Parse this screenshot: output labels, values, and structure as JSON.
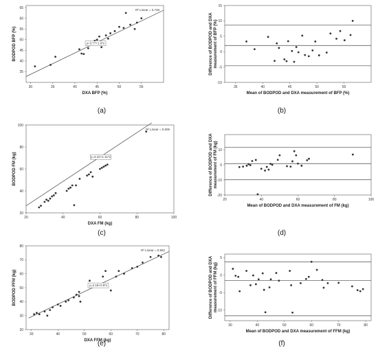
{
  "chart_data": [
    {
      "id": "a",
      "caption": "(a)",
      "type": "scatter",
      "xlabel": "DXA BFP (%)",
      "ylabel": "BODPOD BFP (%)",
      "xlim": [
        29,
        60
      ],
      "ylim": [
        30,
        66
      ],
      "xticks": [
        30,
        35,
        40,
        45,
        50,
        55
      ],
      "yticks": [
        35,
        40,
        45,
        50,
        55,
        60,
        65
      ],
      "r2_label": "R² Linear = 0.748",
      "equation": "y=3.77+1.0*x",
      "fit": {
        "slope": 1.0,
        "intercept": 3.77,
        "x_range": [
          29,
          60
        ]
      },
      "points": [
        [
          31,
          37.5
        ],
        [
          34.5,
          38.2
        ],
        [
          35.6,
          42.0
        ],
        [
          41,
          45.5
        ],
        [
          41.5,
          43.5
        ],
        [
          42,
          43.3
        ],
        [
          43,
          46.0
        ],
        [
          43.5,
          47.5
        ],
        [
          44,
          47.8
        ],
        [
          44.5,
          49.5
        ],
        [
          45,
          50.0
        ],
        [
          45.5,
          51.5
        ],
        [
          46,
          46.5
        ],
        [
          46.5,
          48.0
        ],
        [
          47,
          52.0
        ],
        [
          47.5,
          50.5
        ],
        [
          48,
          53.0
        ],
        [
          49,
          54.0
        ],
        [
          50,
          56.0
        ],
        [
          51,
          55.5
        ],
        [
          51.5,
          62.5
        ],
        [
          52.5,
          57.0
        ],
        [
          53.5,
          55.0
        ],
        [
          54,
          58.0
        ],
        [
          55,
          60.0
        ]
      ]
    },
    {
      "id": "b",
      "caption": "(b)",
      "type": "scatter",
      "xlabel": "Mean of BODPOD and DXA measurement of BFP (%)",
      "ylabel": "Difference of BODPOD and DXA measurement of BFP (%)",
      "xlim": [
        33,
        60
      ],
      "ylim": [
        -10,
        15
      ],
      "xticks": [
        35,
        40,
        45,
        50,
        55
      ],
      "yticks": [
        -10,
        -5,
        0,
        5,
        10,
        15
      ],
      "hlines": [
        8.6,
        2.0,
        -4.6
      ],
      "points": [
        [
          37,
          3.3
        ],
        [
          38.5,
          0.8
        ],
        [
          41,
          4.8
        ],
        [
          42.2,
          -3.0
        ],
        [
          42.6,
          2.7
        ],
        [
          43,
          1.2
        ],
        [
          44,
          -2.5
        ],
        [
          44.4,
          -3.1
        ],
        [
          44.7,
          3.4
        ],
        [
          45.4,
          0.2
        ],
        [
          45.8,
          -3.3
        ],
        [
          46.2,
          1.5
        ],
        [
          46.6,
          -0.2
        ],
        [
          47.3,
          5.2
        ],
        [
          47.8,
          -1.1
        ],
        [
          48.5,
          -1.5
        ],
        [
          49.2,
          0.4
        ],
        [
          49.7,
          3.3
        ],
        [
          50.4,
          -1.2
        ],
        [
          51.8,
          -0.3
        ],
        [
          52.5,
          5.9
        ],
        [
          53.6,
          4.2
        ],
        [
          54.3,
          6.7
        ],
        [
          55.1,
          3.7
        ],
        [
          56.2,
          5.4
        ],
        [
          56.6,
          10.0
        ]
      ]
    },
    {
      "id": "c",
      "caption": "(c)",
      "type": "scatter",
      "xlabel": "DXA FM (kg)",
      "ylabel": "BODPOD FM (kg)",
      "xlim": [
        20,
        100
      ],
      "ylim": [
        20,
        100
      ],
      "xticks": [
        20,
        40,
        60,
        80,
        100
      ],
      "yticks": [
        20,
        40,
        60,
        80,
        100
      ],
      "r2_label": "R² Linear = 0.905",
      "equation": "y=4.22+1.11*x",
      "fit": {
        "slope": 1.11,
        "intercept": 4.22,
        "x_range": [
          20,
          88
        ]
      },
      "points": [
        [
          27,
          25
        ],
        [
          28,
          26.5
        ],
        [
          30,
          30
        ],
        [
          31,
          32
        ],
        [
          32,
          31
        ],
        [
          33,
          33
        ],
        [
          34,
          35
        ],
        [
          35,
          36
        ],
        [
          36,
          38
        ],
        [
          42,
          40
        ],
        [
          43,
          42
        ],
        [
          44,
          43
        ],
        [
          45,
          45
        ],
        [
          46,
          27
        ],
        [
          47,
          45
        ],
        [
          49,
          51
        ],
        [
          53,
          54
        ],
        [
          54,
          55
        ],
        [
          55,
          57
        ],
        [
          56,
          53
        ],
        [
          60,
          60
        ],
        [
          61,
          61
        ],
        [
          62,
          62
        ],
        [
          63,
          63
        ],
        [
          64,
          64
        ],
        [
          85,
          94
        ]
      ]
    },
    {
      "id": "d",
      "caption": "(d)",
      "type": "scatter",
      "xlabel": "Mean of BODPOD and DXA measurement of FM (kg)",
      "ylabel": "Difference of BODPOD and DXA measurement of FM (kg)",
      "xlim": [
        20,
        100
      ],
      "ylim": [
        -20,
        20
      ],
      "xticks": [
        20,
        40,
        60,
        80,
        100
      ],
      "yticks": [
        -20,
        -10,
        0,
        10
      ],
      "hlines": [
        11.5,
        0.8,
        -9.9
      ],
      "points": [
        [
          28,
          -1.5
        ],
        [
          30,
          -1.2
        ],
        [
          32,
          -0.6
        ],
        [
          33,
          0.4
        ],
        [
          34,
          -0.2
        ],
        [
          35,
          2.5
        ],
        [
          37,
          3.2
        ],
        [
          38,
          -19.5
        ],
        [
          40,
          -2.6
        ],
        [
          42,
          -3.8
        ],
        [
          43,
          -1.4
        ],
        [
          44,
          -3.2
        ],
        [
          45,
          0.6
        ],
        [
          46,
          0.0
        ],
        [
          49,
          3.3
        ],
        [
          50,
          6.3
        ],
        [
          54,
          -0.9
        ],
        [
          56,
          -1.2
        ],
        [
          57,
          2.3
        ],
        [
          58,
          9.0
        ],
        [
          59,
          6.3
        ],
        [
          60,
          0.8
        ],
        [
          62,
          -0.6
        ],
        [
          65,
          3.0
        ],
        [
          66,
          4.0
        ],
        [
          90,
          6.8
        ]
      ]
    },
    {
      "id": "e",
      "caption": "(e)",
      "type": "scatter",
      "xlabel": "DXA FFM (kg)",
      "ylabel": "BODPOD FFM (kg)",
      "xlim": [
        28,
        82
      ],
      "ylim": [
        20,
        80
      ],
      "xticks": [
        30,
        40,
        50,
        60,
        70,
        80
      ],
      "yticks": [
        20,
        30,
        40,
        50,
        60,
        70,
        80
      ],
      "r2_label": "R² Linear = 0.962",
      "equation": "y=2.18+0.9*x",
      "fit": {
        "slope": 0.9,
        "intercept": 2.18,
        "x_range": [
          29,
          82
        ]
      },
      "points": [
        [
          31,
          31
        ],
        [
          32,
          32
        ],
        [
          33,
          31
        ],
        [
          35,
          33
        ],
        [
          36,
          30
        ],
        [
          37,
          34
        ],
        [
          38,
          36
        ],
        [
          40,
          38
        ],
        [
          41,
          37
        ],
        [
          43,
          40
        ],
        [
          44,
          41
        ],
        [
          46,
          43
        ],
        [
          47,
          45
        ],
        [
          48,
          44
        ],
        [
          48,
          47
        ],
        [
          48.5,
          40
        ],
        [
          52,
          55
        ],
        [
          54,
          52
        ],
        [
          57,
          58
        ],
        [
          58,
          62
        ],
        [
          60,
          48
        ],
        [
          62,
          58
        ],
        [
          63,
          62
        ],
        [
          65,
          60
        ],
        [
          68,
          64
        ],
        [
          70,
          65
        ],
        [
          72,
          68
        ],
        [
          75,
          72
        ],
        [
          78,
          73
        ],
        [
          79,
          72
        ]
      ]
    },
    {
      "id": "f",
      "caption": "(f)",
      "type": "scatter",
      "xlabel": "Mean of BODPOD and DXA measurement of FFM (kg)",
      "ylabel": "Difference of BODPOD and DXA measurement of FFM (kg)",
      "xlim": [
        28,
        82
      ],
      "ylim": [
        -13,
        6
      ],
      "xticks": [
        30,
        40,
        50,
        60,
        70,
        80
      ],
      "yticks": [
        -10,
        -5,
        0,
        5
      ],
      "hlines": [
        3.8,
        -1.5,
        -11.6
      ],
      "points": [
        [
          31,
          1.8
        ],
        [
          32,
          -0.2
        ],
        [
          33,
          -0.5
        ],
        [
          33.5,
          -4.6
        ],
        [
          36,
          1.2
        ],
        [
          37.5,
          -2.9
        ],
        [
          38.5,
          -0.1
        ],
        [
          39.5,
          -2.6
        ],
        [
          40.5,
          -1.2
        ],
        [
          42,
          0.5
        ],
        [
          42.5,
          -4.2
        ],
        [
          43,
          -10.6
        ],
        [
          44.5,
          -3.5
        ],
        [
          45,
          -1.2
        ],
        [
          47,
          0.6
        ],
        [
          48,
          -1.6
        ],
        [
          52,
          1.2
        ],
        [
          52.5,
          -2.9
        ],
        [
          53,
          -10.7
        ],
        [
          56,
          -2.3
        ],
        [
          58,
          -1.1
        ],
        [
          59,
          -0.5
        ],
        [
          60,
          3.8
        ],
        [
          62,
          1.5
        ],
        [
          64,
          -1.4
        ],
        [
          64.5,
          -3.6
        ],
        [
          66,
          -2.3
        ],
        [
          70,
          -2.2
        ],
        [
          75,
          -3.2
        ],
        [
          77,
          -4.3
        ],
        [
          78,
          -4.6
        ],
        [
          79,
          -4.0
        ]
      ]
    }
  ]
}
